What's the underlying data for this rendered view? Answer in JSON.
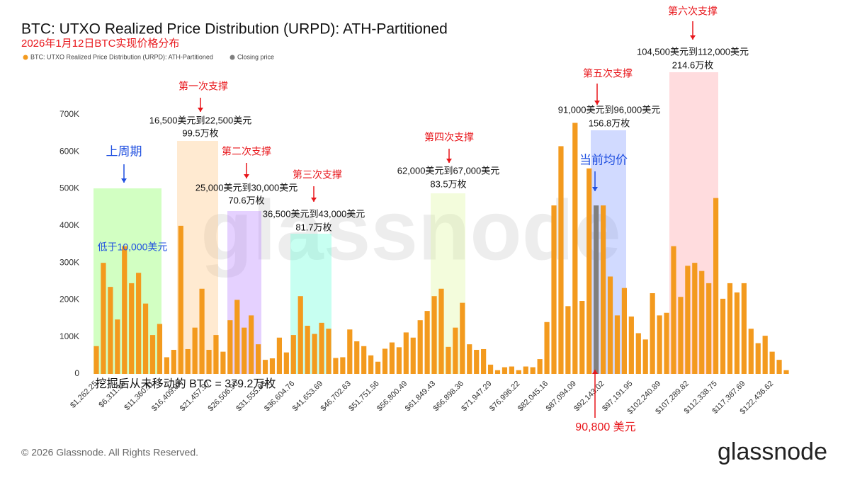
{
  "chart_data": {
    "type": "bar",
    "title": "BTC: UTXO Realized Price Distribution (URPD): ATH-Partitioned",
    "subtitle": "2026年1月12日BTC实现价格分布",
    "categories": [
      "$1,262.25",
      null,
      null,
      null,
      "$6,311.18",
      null,
      null,
      null,
      "$11,360.11",
      null,
      null,
      null,
      "$16,409.04",
      null,
      null,
      null,
      "$21,457.97",
      null,
      null,
      null,
      "$26,506.90",
      null,
      null,
      null,
      "$31,555.83",
      null,
      null,
      null,
      "$36,604.76",
      null,
      null,
      null,
      "$41,653.69",
      null,
      null,
      null,
      "$46,702.63",
      null,
      null,
      null,
      "$51,751.56",
      null,
      null,
      null,
      "$56,800.49",
      null,
      null,
      null,
      "$61,849.43",
      null,
      null,
      null,
      "$66,898.36",
      null,
      null,
      null,
      "$71,947.29",
      null,
      null,
      null,
      "$76,996.22",
      null,
      null,
      null,
      "$82,045.16",
      null,
      null,
      null,
      "$87,094.09",
      null,
      null,
      null,
      "$92,143.02",
      null,
      null,
      null,
      "$97,191.95",
      null,
      null,
      null,
      "$102,240.89",
      null,
      null,
      null,
      "$107,289.82",
      null,
      null,
      null,
      "$112,338.75",
      null,
      null,
      null,
      "$117,387.69",
      null,
      null,
      null,
      "$122,436.62",
      null,
      null
    ],
    "series": [
      {
        "name": "BTC: UTXO Realized Price Distribution (URPD): ATH-Partitioned",
        "color": "#f39a1e",
        "values": [
          75000,
          300000,
          235000,
          147000,
          345000,
          245000,
          273000,
          190000,
          105000,
          135000,
          45000,
          65000,
          400000,
          67000,
          125000,
          230000,
          65000,
          105000,
          60000,
          145000,
          200000,
          125000,
          158000,
          80000,
          38000,
          42000,
          98000,
          58000,
          105000,
          210000,
          130000,
          108000,
          138000,
          122000,
          43000,
          45000,
          120000,
          88000,
          75000,
          50000,
          33000,
          68000,
          85000,
          72000,
          112000,
          98000,
          145000,
          170000,
          210000,
          230000,
          73000,
          125000,
          192000,
          80000,
          65000,
          67000,
          25000,
          10000,
          18000,
          20000,
          10000,
          20000,
          18000,
          40000,
          140000,
          455000,
          615000,
          183000,
          678000,
          197000,
          555000,
          null,
          455000,
          263000,
          158000,
          232000,
          155000,
          110000,
          93000,
          218000,
          158000,
          165000,
          345000,
          208000,
          292000,
          300000,
          278000,
          245000,
          475000,
          203000,
          245000,
          220000,
          245000,
          122000,
          83000,
          103000,
          60000,
          38000,
          10000
        ]
      },
      {
        "name": "Closing price",
        "color": "#7f7f7f",
        "values": [
          null,
          null,
          null,
          null,
          null,
          null,
          null,
          null,
          null,
          null,
          null,
          null,
          null,
          null,
          null,
          null,
          null,
          null,
          null,
          null,
          null,
          null,
          null,
          null,
          null,
          null,
          null,
          null,
          null,
          null,
          null,
          null,
          null,
          null,
          null,
          null,
          null,
          null,
          null,
          null,
          null,
          null,
          null,
          null,
          null,
          null,
          null,
          null,
          null,
          null,
          null,
          null,
          null,
          null,
          null,
          null,
          null,
          null,
          null,
          null,
          null,
          null,
          null,
          null,
          null,
          null,
          null,
          null,
          null,
          null,
          null,
          455000,
          null,
          null,
          null,
          null,
          null,
          null,
          null,
          null,
          null,
          null,
          null,
          null,
          null,
          null,
          null,
          null,
          null,
          null,
          null,
          null,
          null,
          null,
          null,
          null,
          null,
          null,
          null
        ]
      }
    ],
    "ylim": [
      0,
      700000
    ],
    "yticks": [
      0,
      {
        "value": 100000,
        "label": "100K"
      },
      {
        "value": 200000,
        "label": "200K"
      },
      {
        "value": 300000,
        "label": "300K"
      },
      {
        "value": 400000,
        "label": "400K"
      },
      {
        "value": 500000,
        "label": "500K"
      },
      {
        "value": 600000,
        "label": "600K"
      },
      {
        "value": 700000,
        "label": "700K"
      }
    ],
    "grid": false,
    "annotations": [
      {
        "text": "上周期",
        "color": "#1f4fe0"
      },
      {
        "text": "低于10,000美元",
        "color": "#1f4fe0"
      },
      {
        "text": "第一次支撑",
        "color": "#e8161b"
      },
      {
        "text": "16,500美元到22,500美元",
        "color": "#111111"
      },
      {
        "text": "99.5万枚",
        "color": "#111111"
      },
      {
        "text": "第二次支撑",
        "color": "#e8161b"
      },
      {
        "text": "25,000美元到30,000美元",
        "color": "#111111"
      },
      {
        "text": "70.6万枚",
        "color": "#111111"
      },
      {
        "text": "第三次支撑",
        "color": "#e8161b"
      },
      {
        "text": "36,500美元到43,000美元",
        "color": "#111111"
      },
      {
        "text": "81.7万枚",
        "color": "#111111"
      },
      {
        "text": "第四次支撑",
        "color": "#e8161b"
      },
      {
        "text": "62,000美元到67,000美元",
        "color": "#111111"
      },
      {
        "text": "83.5万枚",
        "color": "#111111"
      },
      {
        "text": "第五次支撑",
        "color": "#e8161b"
      },
      {
        "text": "91,000美元到96,000美元",
        "color": "#111111"
      },
      {
        "text": "156.8万枚",
        "color": "#111111"
      },
      {
        "text": "第六次支撑",
        "color": "#e8161b"
      },
      {
        "text": "104,500美元到112,000美元",
        "color": "#111111"
      },
      {
        "text": "214.6万枚",
        "color": "#111111"
      },
      {
        "text": "当前均价",
        "color": "#1f4fe0"
      },
      {
        "text": "90,800 美元",
        "color": "#e8161b"
      },
      {
        "text": "挖掘后从未移动的 BTC = 379.2万枚",
        "color": "#111111"
      }
    ],
    "watermark": "glassnode",
    "footer": "© 2026 Glassnode. All Rights Reserved.",
    "logo": "glassnode"
  }
}
